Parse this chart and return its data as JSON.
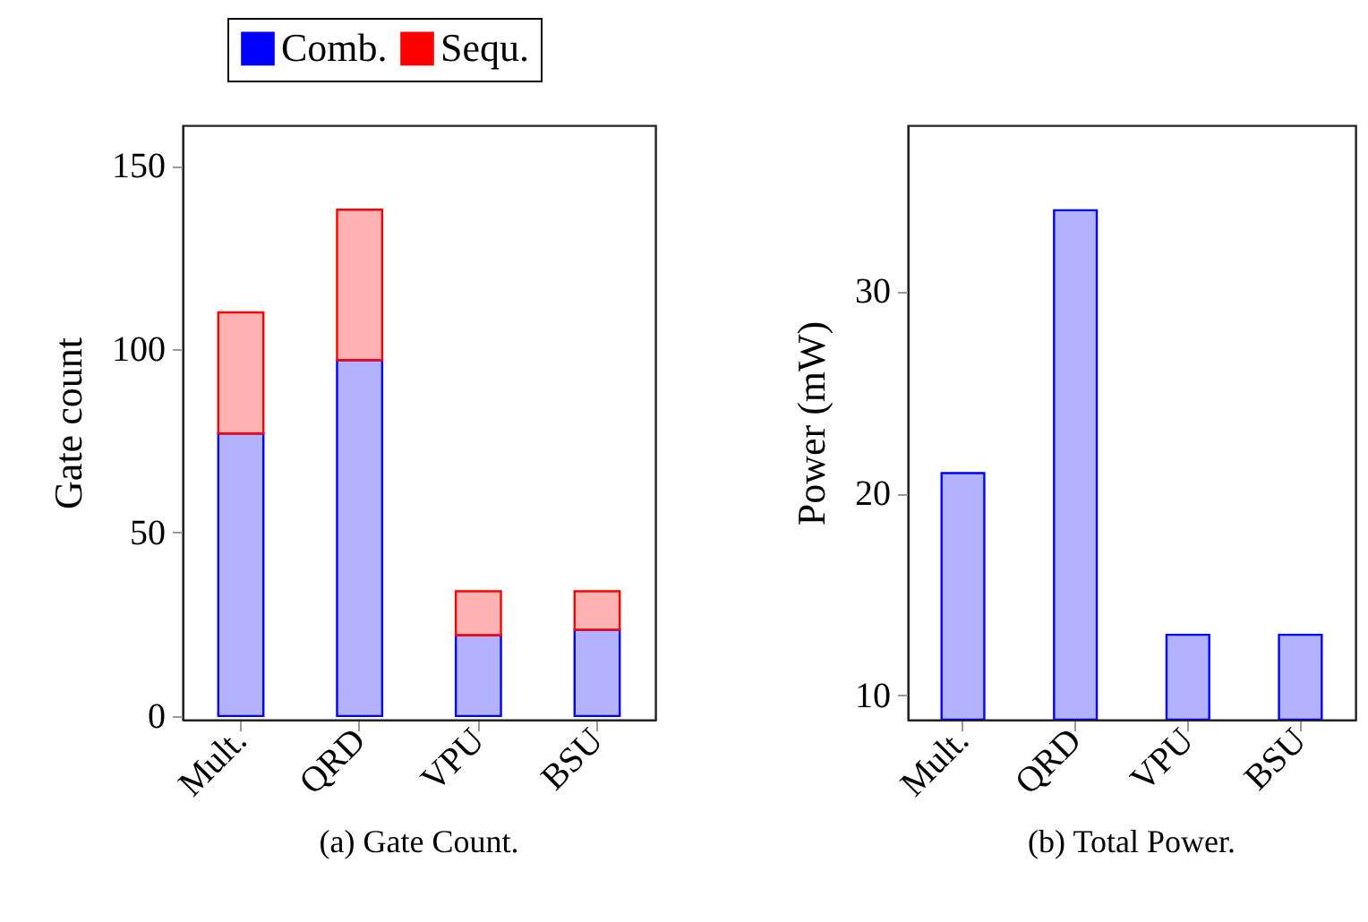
{
  "chart_data": [
    {
      "type": "bar",
      "title": "(a) Gate Count.",
      "ylabel": "Gate count",
      "categories": [
        "Mult.",
        "QRD",
        "VPU",
        "BSU"
      ],
      "stacked": true,
      "legend": "top",
      "series": [
        {
          "name": "Comb.",
          "color": "#0000ff",
          "values": [
            77,
            97,
            22,
            23.5
          ]
        },
        {
          "name": "Sequ.",
          "color": "#ff0000",
          "values": [
            33,
            41,
            12,
            10.5
          ]
        }
      ],
      "ylim": [
        -1,
        161
      ],
      "yticks": [
        0,
        50,
        100,
        150
      ],
      "grid": false
    },
    {
      "type": "bar",
      "title": "(b) Total Power.",
      "ylabel": "Power (mW)",
      "categories": [
        "Mult.",
        "QRD",
        "VPU",
        "BSU"
      ],
      "color": "#0000ff",
      "values": [
        21,
        34,
        13,
        13
      ],
      "ylim": [
        8.8,
        38.2
      ],
      "yticks": [
        10,
        20,
        30
      ],
      "grid": false
    }
  ]
}
